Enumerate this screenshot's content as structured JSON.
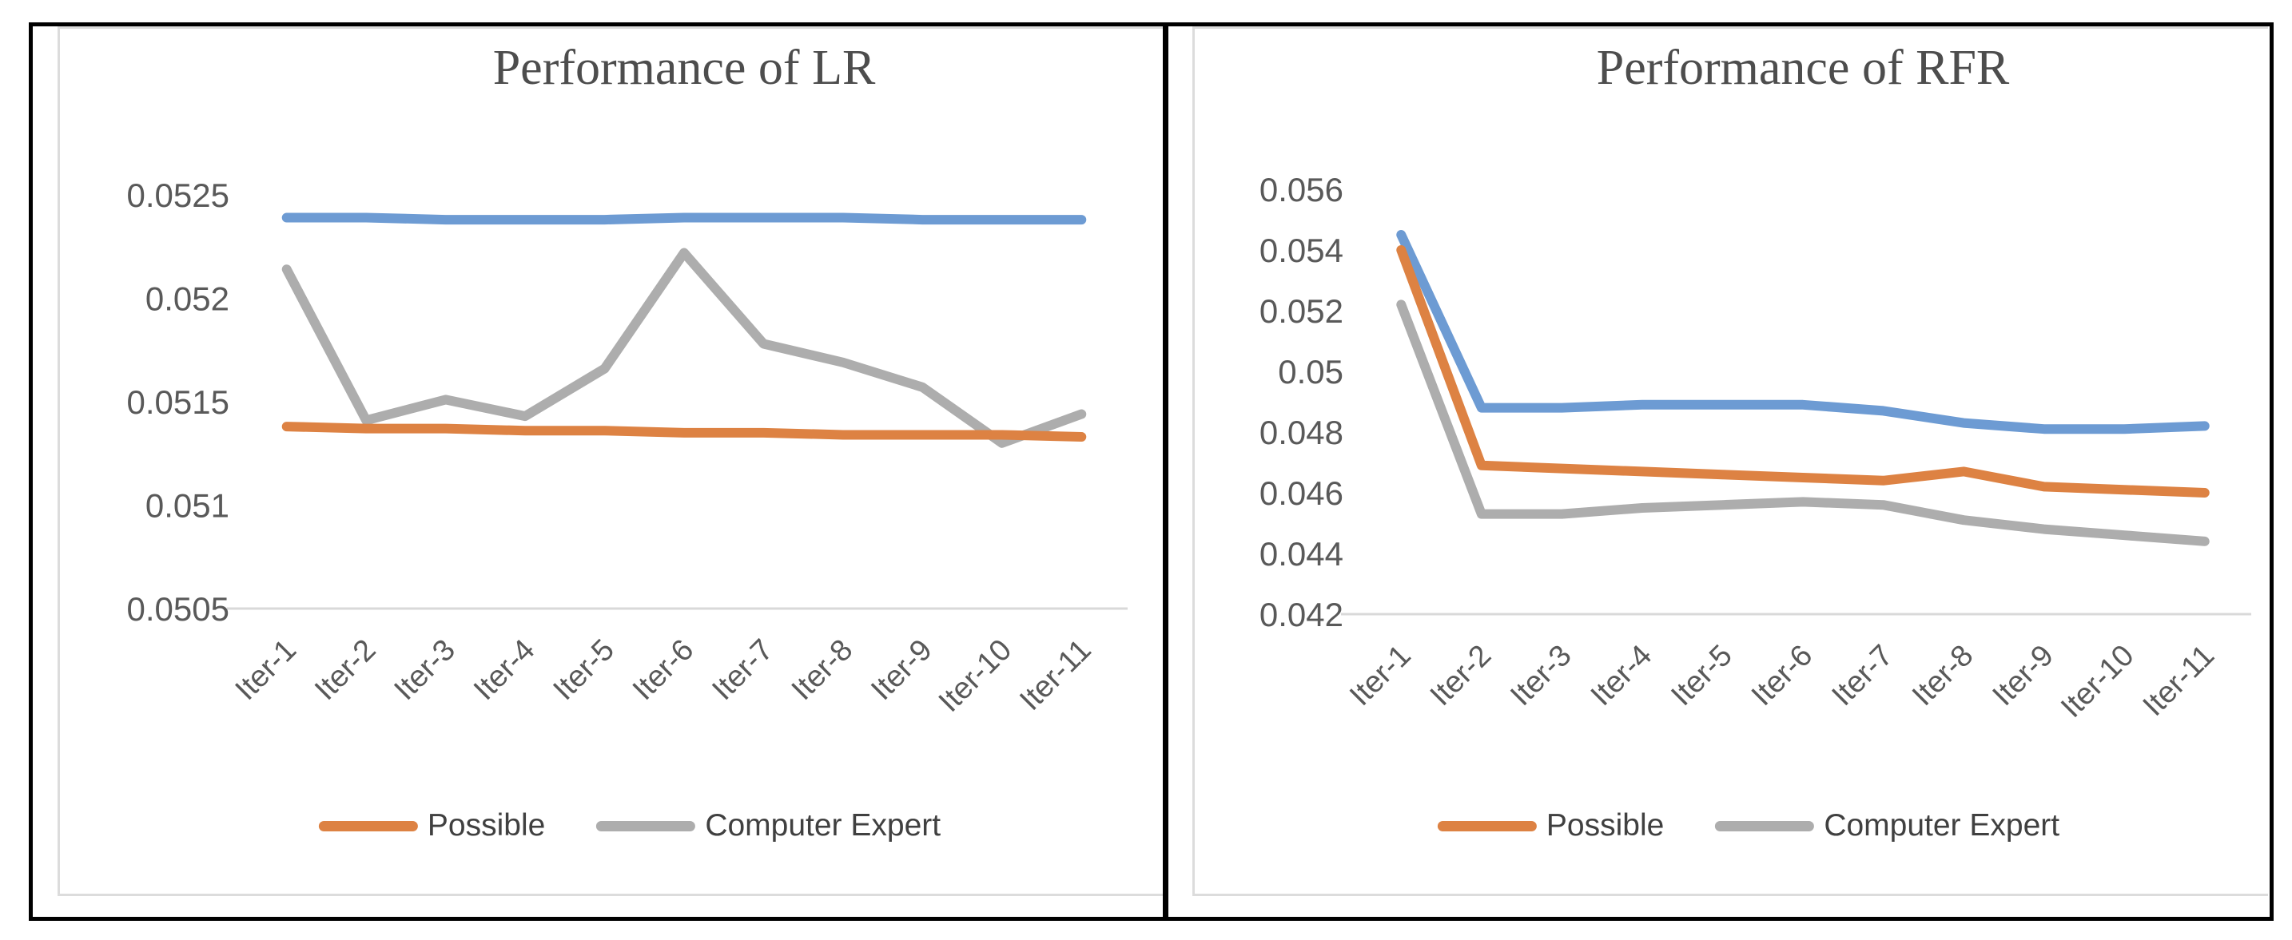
{
  "colors": {
    "frame": "#000000",
    "panel_border": "#dcdcdc",
    "axis_line": "#d9d9d9",
    "tick_text": "#595959",
    "title_text": "#4d4d4d",
    "legend_text": "#404040",
    "series_blue": "#6d9bd3",
    "series_orange": "#dd8243",
    "series_gray": "#adadad"
  },
  "chart_data": [
    {
      "type": "line",
      "title": "Performance of LR",
      "categories": [
        "Iter-1",
        "Iter-2",
        "Iter-3",
        "Iter-4",
        "Iter-5",
        "Iter-6",
        "Iter-7",
        "Iter-8",
        "Iter-9",
        "Iter-10",
        "Iter-11"
      ],
      "y_ticks": [
        "0.0525",
        "0.052",
        "0.0515",
        "0.051",
        "0.0505"
      ],
      "ylim": [
        0.0505,
        0.0525
      ],
      "grid": "bottom-axis-line-only",
      "legend_position": "bottom",
      "series": [
        {
          "name": "",
          "color": "#6d9bd3",
          "z": 0,
          "values": [
            0.05239,
            0.05239,
            0.05238,
            0.05238,
            0.05238,
            0.05239,
            0.05239,
            0.05239,
            0.05238,
            0.05238,
            0.05238
          ]
        },
        {
          "name": "Possible",
          "color": "#dd8243",
          "z": 2,
          "values": [
            0.05138,
            0.05137,
            0.05137,
            0.05136,
            0.05136,
            0.05135,
            0.05135,
            0.05134,
            0.05134,
            0.05134,
            0.05133
          ]
        },
        {
          "name": "Computer Expert",
          "color": "#adadad",
          "z": 1,
          "values": [
            0.05214,
            0.05141,
            0.05151,
            0.05143,
            0.05166,
            0.05222,
            0.05178,
            0.05169,
            0.05157,
            0.0513,
            0.05144
          ]
        }
      ]
    },
    {
      "type": "line",
      "title": "Performance of RFR",
      "categories": [
        "Iter-1",
        "Iter-2",
        "Iter-3",
        "Iter-4",
        "Iter-5",
        "Iter-6",
        "Iter-7",
        "Iter-8",
        "Iter-9",
        "Iter-10",
        "Iter-11"
      ],
      "y_ticks": [
        "0.056",
        "0.054",
        "0.052",
        "0.05",
        "0.048",
        "0.046",
        "0.044",
        "0.042"
      ],
      "ylim": [
        0.042,
        0.056
      ],
      "grid": "bottom-axis-line-only",
      "legend_position": "bottom",
      "series": [
        {
          "name": "",
          "color": "#6d9bd3",
          "z": 0,
          "values": [
            0.0545,
            0.0488,
            0.0488,
            0.0489,
            0.0489,
            0.0489,
            0.0487,
            0.0483,
            0.0481,
            0.0481,
            0.0482
          ]
        },
        {
          "name": "Possible",
          "color": "#dd8243",
          "z": 2,
          "values": [
            0.054,
            0.0469,
            0.0468,
            0.0467,
            0.0466,
            0.0465,
            0.0464,
            0.0467,
            0.0462,
            0.0461,
            0.046
          ]
        },
        {
          "name": "Computer Expert",
          "color": "#adadad",
          "z": 1,
          "values": [
            0.0522,
            0.0453,
            0.0453,
            0.0455,
            0.0456,
            0.0457,
            0.0456,
            0.0451,
            0.0448,
            0.0446,
            0.0444
          ]
        }
      ]
    }
  ]
}
